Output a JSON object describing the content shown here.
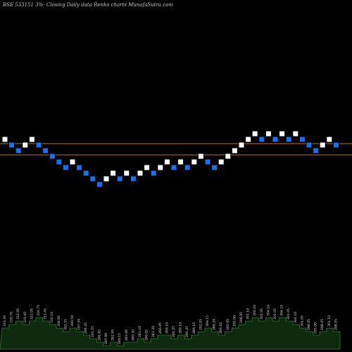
{
  "header": {
    "title": "BSE 533151 3%-  Closing Daily data  Renko  charts MunafaSutra.com"
  },
  "colors": {
    "background": "#000000",
    "up_brick": "#ffffff",
    "down_brick": "#1e6ee6",
    "brick_outline": "#000000",
    "level_line": "#b8732e",
    "volume_fill": "#0f2a0f",
    "volume_edge": "#2f7a2f",
    "label": "#d9d9d9"
  },
  "chart_data": {
    "type": "renko",
    "bricks": [
      {
        "dir": "up",
        "level": 13
      },
      {
        "dir": "down",
        "level": 12
      },
      {
        "dir": "down",
        "level": 11
      },
      {
        "dir": "up",
        "level": 12
      },
      {
        "dir": "up",
        "level": 13
      },
      {
        "dir": "down",
        "level": 12
      },
      {
        "dir": "down",
        "level": 11
      },
      {
        "dir": "down",
        "level": 10
      },
      {
        "dir": "down",
        "level": 9
      },
      {
        "dir": "down",
        "level": 8
      },
      {
        "dir": "up",
        "level": 9
      },
      {
        "dir": "down",
        "level": 8
      },
      {
        "dir": "down",
        "level": 7
      },
      {
        "dir": "down",
        "level": 6
      },
      {
        "dir": "down",
        "level": 5
      },
      {
        "dir": "up",
        "level": 6
      },
      {
        "dir": "up",
        "level": 7
      },
      {
        "dir": "down",
        "level": 6
      },
      {
        "dir": "up",
        "level": 7
      },
      {
        "dir": "down",
        "level": 6
      },
      {
        "dir": "up",
        "level": 7
      },
      {
        "dir": "up",
        "level": 8
      },
      {
        "dir": "down",
        "level": 7
      },
      {
        "dir": "up",
        "level": 8
      },
      {
        "dir": "up",
        "level": 9
      },
      {
        "dir": "down",
        "level": 8
      },
      {
        "dir": "up",
        "level": 9
      },
      {
        "dir": "down",
        "level": 8
      },
      {
        "dir": "up",
        "level": 9
      },
      {
        "dir": "up",
        "level": 10
      },
      {
        "dir": "down",
        "level": 9
      },
      {
        "dir": "down",
        "level": 8
      },
      {
        "dir": "up",
        "level": 9
      },
      {
        "dir": "up",
        "level": 10
      },
      {
        "dir": "up",
        "level": 11
      },
      {
        "dir": "up",
        "level": 12
      },
      {
        "dir": "up",
        "level": 13
      },
      {
        "dir": "up",
        "level": 14
      },
      {
        "dir": "down",
        "level": 13
      },
      {
        "dir": "up",
        "level": 14
      },
      {
        "dir": "down",
        "level": 13
      },
      {
        "dir": "up",
        "level": 14
      },
      {
        "dir": "down",
        "level": 13
      },
      {
        "dir": "up",
        "level": 14
      },
      {
        "dir": "down",
        "level": 13
      },
      {
        "dir": "down",
        "level": 12
      },
      {
        "dir": "down",
        "level": 11
      },
      {
        "dir": "up",
        "level": 12
      },
      {
        "dir": "up",
        "level": 13
      },
      {
        "dir": "down",
        "level": 12
      }
    ],
    "reference_levels": [
      12,
      10
    ],
    "volume": [
      6,
      7,
      8,
      7,
      8,
      9,
      8,
      7,
      6,
      5,
      6,
      5,
      4,
      3,
      2,
      1,
      2,
      1,
      2,
      2,
      3,
      2,
      3,
      4,
      4,
      3,
      4,
      3,
      4,
      5,
      6,
      5,
      4,
      5,
      6,
      7,
      8,
      9,
      8,
      9,
      8,
      9,
      8,
      7,
      6,
      5,
      4,
      5,
      6,
      5
    ],
    "volume_max": 10,
    "price_labels": [
      "333.30",
      "330.70",
      "322.95",
      "319.40",
      "322.05",
      "316.75",
      "313.45",
      "310.10",
      "306.85",
      "303.55",
      "300.50",
      "297.50",
      "294.45",
      "291.55",
      "288.65",
      "285.80",
      "282.95",
      "280.15",
      "283.00",
      "280.30",
      "283.10",
      "286.05",
      "283.20",
      "286.05",
      "289.10",
      "286.25",
      "289.10",
      "286.25",
      "289.10",
      "292.05",
      "289.15",
      "286.20",
      "289.10",
      "292.05",
      "295.00",
      "298.05",
      "301.10",
      "304.10",
      "301.05",
      "304.10",
      "301.05",
      "304.10",
      "301.05",
      "304.10",
      "301.05",
      "298.05",
      "295.00",
      "298.05",
      "301.10",
      "298.05"
    ]
  }
}
